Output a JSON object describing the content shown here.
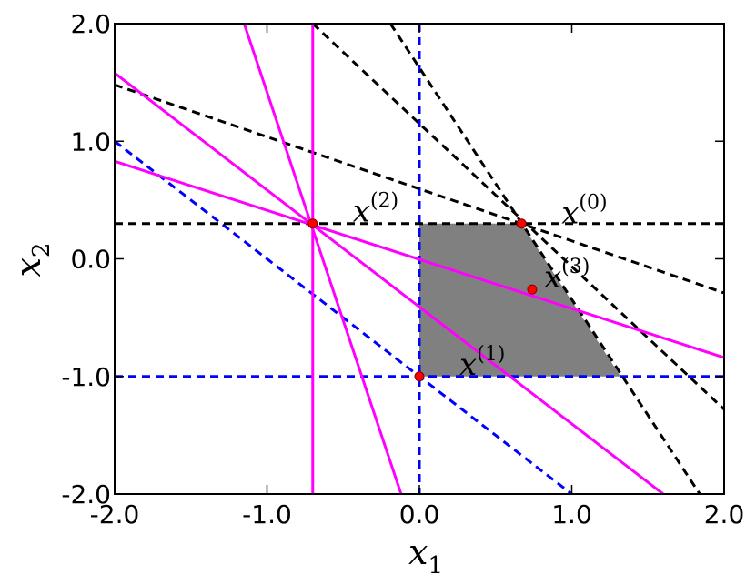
{
  "chart_data": {
    "type": "line",
    "xlim": [
      -2,
      2
    ],
    "ylim": [
      -2,
      2
    ],
    "xticks": [
      {
        "value": -2,
        "label": "-2.0"
      },
      {
        "value": -1,
        "label": "-1.0"
      },
      {
        "value": 0,
        "label": "0.0"
      },
      {
        "value": 1,
        "label": "1.0"
      },
      {
        "value": 2,
        "label": "2.0"
      }
    ],
    "yticks": [
      {
        "value": -2,
        "label": "-2.0"
      },
      {
        "value": -1,
        "label": "-1.0"
      },
      {
        "value": 0,
        "label": "0.0"
      },
      {
        "value": 1,
        "label": "1.0"
      },
      {
        "value": 2,
        "label": "2.0"
      }
    ],
    "xlabel": {
      "base": "x",
      "sub": "1"
    },
    "ylabel": {
      "base": "x",
      "sub": "2"
    },
    "region": {
      "color": "#808080",
      "x": [
        0,
        0.67,
        1.32,
        0
      ],
      "y": [
        0.3,
        0.3,
        -1,
        -1
      ]
    },
    "series": [
      {
        "color": "#0000ff",
        "dashed": true,
        "x": [
          0,
          0
        ],
        "y": [
          2,
          -2
        ]
      },
      {
        "color": "#0000ff",
        "dashed": true,
        "x": [
          -2,
          2
        ],
        "y": [
          -1,
          -1
        ]
      },
      {
        "color": "#0000ff",
        "dashed": true,
        "x": [
          -2,
          1
        ],
        "y": [
          1,
          -2
        ]
      },
      {
        "color": "#000000",
        "dashed": true,
        "x": [
          -2,
          2
        ],
        "y": [
          0.3,
          0.3
        ]
      },
      {
        "color": "#000000",
        "dashed": true,
        "x": [
          -2,
          2
        ],
        "y": [
          1.48,
          -0.29
        ]
      },
      {
        "color": "#000000",
        "dashed": true,
        "x": [
          -0.7,
          2
        ],
        "y": [
          2,
          -1.28
        ]
      },
      {
        "color": "#000000",
        "dashed": true,
        "x": [
          -0.19,
          1.84
        ],
        "y": [
          2,
          -2
        ]
      },
      {
        "color": "#ff00ff",
        "dashed": false,
        "x": [
          -0.7,
          -0.7
        ],
        "y": [
          2,
          -2
        ]
      },
      {
        "color": "#ff00ff",
        "dashed": false,
        "x": [
          -2,
          1.6
        ],
        "y": [
          1.58,
          -2
        ]
      },
      {
        "color": "#ff00ff",
        "dashed": false,
        "x": [
          -2,
          2
        ],
        "y": [
          0.83,
          -0.84
        ]
      },
      {
        "color": "#ff00ff",
        "dashed": false,
        "x": [
          -1.15,
          -0.12
        ],
        "y": [
          2,
          -2
        ]
      }
    ],
    "points": {
      "color": "#ff0000",
      "x": [
        0.67,
        0,
        -0.7,
        0.74
      ],
      "y": [
        0.3,
        -1,
        0.3,
        -0.26
      ],
      "labels": [
        {
          "base": "x",
          "sup": "(0)"
        },
        {
          "base": "x",
          "sup": "(1)"
        },
        {
          "base": "x",
          "sup": "(2)"
        },
        {
          "base": "x",
          "sup": "(3)"
        }
      ]
    }
  }
}
